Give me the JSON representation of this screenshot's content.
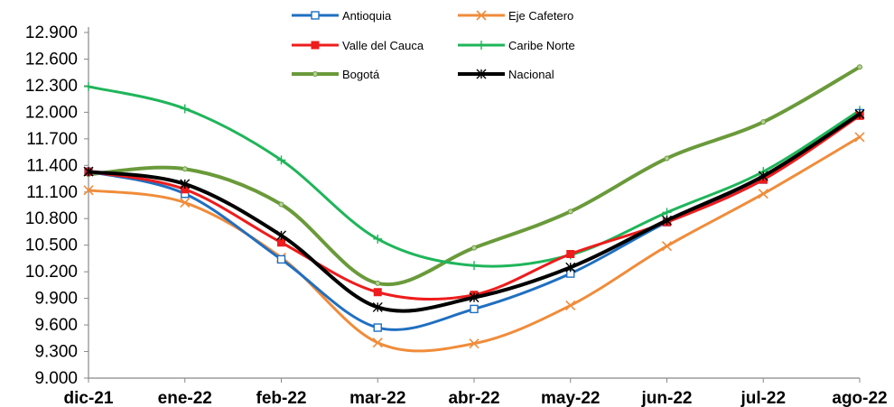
{
  "chart_data": {
    "type": "line",
    "title": "",
    "xlabel": "",
    "ylabel": "",
    "categories": [
      "dic-21",
      "ene-22",
      "feb-22",
      "mar-22",
      "abr-22",
      "may-22",
      "jun-22",
      "jul-22",
      "ago-22"
    ],
    "ylim": [
      9000,
      12900
    ],
    "yticks": [
      9000,
      9300,
      9600,
      9900,
      10200,
      10500,
      10800,
      11100,
      11400,
      11700,
      12000,
      12300,
      12600,
      12900
    ],
    "ytick_labels": [
      "9.000",
      "9.300",
      "9.600",
      "9.900",
      "10.200",
      "10.500",
      "10.800",
      "11.100",
      "11.400",
      "11.700",
      "12.000",
      "12.300",
      "12.600",
      "12.900"
    ],
    "grid": false,
    "legend_position": "top",
    "smooth": true,
    "series": [
      {
        "name": "Antioquia",
        "color": "#1f6fc1",
        "marker": "square-open",
        "values": [
          11330,
          11080,
          10340,
          9570,
          9780,
          10180,
          10760,
          11240,
          11990
        ]
      },
      {
        "name": "Eje Cafetero",
        "color": "#f08c3a",
        "marker": "x",
        "values": [
          11120,
          10980,
          10360,
          9400,
          9390,
          9820,
          10490,
          11080,
          11720
        ]
      },
      {
        "name": "Valle del Cauca",
        "color": "#ee1c1c",
        "marker": "square-filled",
        "values": [
          11330,
          11130,
          10530,
          9970,
          9940,
          10400,
          10760,
          11240,
          11960
        ]
      },
      {
        "name": "Caribe Norte",
        "color": "#1fb55a",
        "marker": "plus",
        "values": [
          12290,
          12040,
          11460,
          10570,
          10270,
          10390,
          10870,
          11330,
          12020
        ]
      },
      {
        "name": "Bogotá",
        "color": "#6a9a3a",
        "marker": "dot",
        "values": [
          11300,
          11360,
          10960,
          10070,
          10470,
          10880,
          11480,
          11890,
          12510
        ]
      },
      {
        "name": "Nacional",
        "color": "#000000",
        "marker": "star",
        "values": [
          11330,
          11190,
          10610,
          9800,
          9910,
          10250,
          10780,
          11280,
          11980
        ]
      }
    ]
  }
}
